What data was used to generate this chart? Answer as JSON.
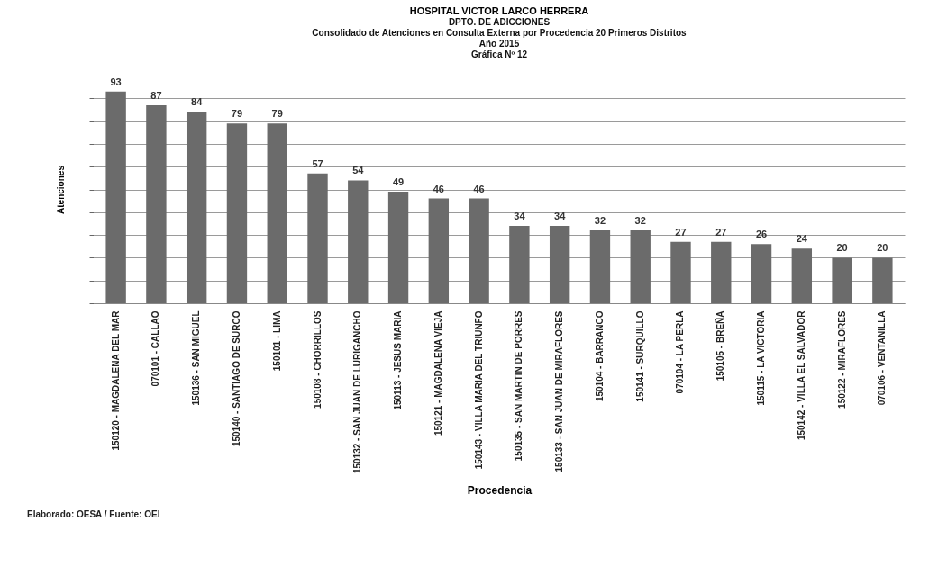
{
  "chart_data": {
    "type": "bar",
    "title": "HOSPITAL VICTOR LARCO HERRERA",
    "subtitle": "DPTO. DE ADICCIONES\nConsolidado de Atenciones en Consulta Externa por Procedencia 20 Primeros Distritos\nAño 2015\nGráfica Nº 12",
    "xlabel": "Procedencia",
    "ylabel": "Atenciones",
    "annotations": [
      "Elaborado: OESA / Fuente: OEI"
    ],
    "categories": [
      "150120 - MAGDALENA DEL MAR",
      "070101 - CALLAO",
      "150136 - SAN MIGUEL",
      "150140 - SANTIAGO DE SURCO",
      "150101 - LIMA",
      "150108 - CHORRILLOS",
      "150132 - SAN JUAN DE LURIGANCHO",
      "150113 - JESUS MARIA",
      "150121 - MAGDALENA VIEJA",
      "150143 - VILLA MARIA DEL TRIUNFO",
      "150135 - SAN MARTIN DE PORRES",
      "150133 - SAN JUAN DE MIRAFLORES",
      "150104 - BARRANCO",
      "150141 - SURQUILLO",
      "070104 - LA PERLA",
      "150105 - BREÑA",
      "150115 - LA VICTORIA",
      "150142 - VILLA EL SALVADOR",
      "150122 - MIRAFLORES",
      "070106 - VENTANILLA"
    ],
    "values": [
      93,
      87,
      84,
      79,
      79,
      57,
      54,
      49,
      46,
      46,
      34,
      34,
      32,
      32,
      27,
      27,
      26,
      24,
      20,
      20
    ],
    "color": "#6b6b6b",
    "ylim": [
      0,
      100
    ],
    "tick_labels": "x",
    "grid": "y",
    "data_labels": true
  }
}
